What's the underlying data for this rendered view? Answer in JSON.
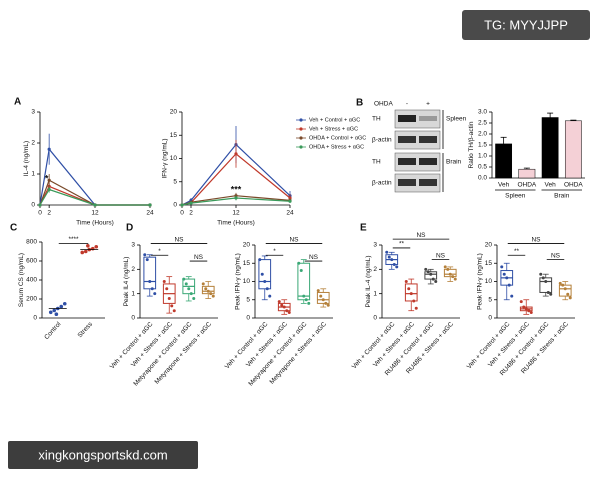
{
  "watermarks": {
    "top": "TG: MYYJJPP",
    "bottom": "xingkongsportskd.com"
  },
  "blot": {
    "panel": "B",
    "treatment": "OHDA",
    "lanes": [
      "-",
      "+"
    ],
    "rows": [
      "TH",
      "β-actin",
      "TH",
      "β-actin"
    ],
    "tissues": [
      "Spleen",
      "Brain"
    ]
  },
  "chart_data": [
    {
      "type": "line",
      "panel": "A",
      "ylabel": "IL-4 (ng/mL)",
      "xlabel": "Time (Hours)",
      "x": [
        0,
        2,
        12,
        24
      ],
      "xlim": [
        0,
        24
      ],
      "xticks": [
        0,
        2,
        12,
        24
      ],
      "ylim": [
        0,
        3
      ],
      "yticks": [
        0,
        1,
        2,
        3
      ],
      "series": [
        {
          "name": "Veh + Control + αGC",
          "color": "#2f4fa6",
          "values": [
            0,
            1.8,
            0,
            0
          ],
          "errors": [
            0,
            0.5,
            0,
            0
          ]
        },
        {
          "name": "Veh + Stress + αGC",
          "color": "#c0392b",
          "values": [
            0,
            0.6,
            0,
            0
          ],
          "errors": [
            0,
            0.15,
            0,
            0
          ]
        },
        {
          "name": "OHDA + Control + αGC",
          "color": "#7a4a2a",
          "values": [
            0,
            0.8,
            0,
            0
          ],
          "errors": [
            0,
            0.2,
            0,
            0
          ]
        },
        {
          "name": "OHDA + Stress + αGC",
          "color": "#3a9a5a",
          "values": [
            0,
            0.5,
            0,
            0
          ],
          "errors": [
            0,
            0.1,
            0,
            0
          ]
        }
      ],
      "annotations": [
        "*"
      ]
    },
    {
      "type": "line",
      "ylabel": "IFN-γ (ng/mL)",
      "xlabel": "Time (Hours)",
      "x": [
        0,
        2,
        12,
        24
      ],
      "xlim": [
        0,
        24
      ],
      "xticks": [
        0,
        2,
        12,
        24
      ],
      "ylim": [
        0,
        20
      ],
      "yticks": [
        0,
        5,
        10,
        15,
        20
      ],
      "legend": "right",
      "series": [
        {
          "name": "Veh + Control + αGC",
          "color": "#2f4fa6",
          "values": [
            0,
            1,
            13,
            2
          ],
          "errors": [
            0,
            0.5,
            4,
            1
          ]
        },
        {
          "name": "Veh + Stress + αGC",
          "color": "#c0392b",
          "values": [
            0,
            0.5,
            11,
            1.5
          ],
          "errors": [
            0,
            0.3,
            3,
            0.8
          ]
        },
        {
          "name": "OHDA + Control + αGC",
          "color": "#7a4a2a",
          "values": [
            0,
            0.6,
            2,
            1
          ],
          "errors": [
            0,
            0.2,
            0.6,
            0.3
          ]
        },
        {
          "name": "OHDA + Stress + αGC",
          "color": "#3a9a5a",
          "values": [
            0,
            0.4,
            1.5,
            0.8
          ],
          "errors": [
            0,
            0.2,
            0.5,
            0.3
          ]
        }
      ],
      "annotations": [
        "***"
      ]
    },
    {
      "type": "bar",
      "ylabel": "Ratio TH/β-actin",
      "categories": [
        "Veh",
        "OHDA",
        "Veh",
        "OHDA"
      ],
      "groups": [
        "Spleen",
        "Brain"
      ],
      "values": [
        1.55,
        0.4,
        2.75,
        2.6
      ],
      "errors": [
        0.3,
        0.05,
        0.2,
        0.03
      ],
      "colors": [
        "#000000",
        "#f4d0d6",
        "#000000",
        "#f4d0d6"
      ],
      "ylim": [
        0,
        3
      ],
      "yticks": [
        {
          "value": 0,
          "label": "0.0"
        },
        0.5,
        {
          "value": 1,
          "label": "1.0"
        },
        1.5,
        {
          "value": 2,
          "label": "2.0"
        },
        2.5,
        {
          "value": 3,
          "label": "3.0"
        }
      ]
    },
    {
      "type": "strip",
      "panel": "C",
      "ylabel": "Serum CS (ng/mL)",
      "categories": [
        "Control",
        "Stress"
      ],
      "points": [
        [
          60,
          80,
          100,
          120,
          150,
          40
        ],
        [
          690,
          700,
          720,
          730,
          750,
          760
        ]
      ],
      "means": [
        100,
        720
      ],
      "colors": [
        "#2f4fa6",
        "#c0392b"
      ],
      "ylim": [
        0,
        800
      ],
      "yticks": [
        0,
        200,
        400,
        600,
        800
      ],
      "annotations": [
        "****"
      ]
    },
    {
      "type": "box",
      "panel": "D",
      "ylabel": "Peak IL4 (ng/mL)",
      "categories": [
        "Veh + Control + αGC",
        "Veh + Stress + αGC",
        "Metyrapone + Control + αGC",
        "Metyrapone + Stress + αGC"
      ],
      "colors": [
        "#2f4fa6",
        "#c0392b",
        "#3aa876",
        "#b5803a"
      ],
      "ylim": [
        0,
        3
      ],
      "yticks": [
        0,
        1,
        2,
        3
      ],
      "boxes": [
        {
          "min": 0.9,
          "q1": 1.2,
          "median": 1.5,
          "q3": 2.5,
          "max": 2.6,
          "points": [
            2.6,
            2.4,
            1.5,
            1.2,
            1.0
          ]
        },
        {
          "min": 0.2,
          "q1": 0.6,
          "median": 1.0,
          "q3": 1.4,
          "max": 1.7,
          "points": [
            1.5,
            1.2,
            0.8,
            0.5,
            0.3
          ]
        },
        {
          "min": 0.7,
          "q1": 1.0,
          "median": 1.3,
          "q3": 1.6,
          "max": 1.7,
          "points": [
            1.6,
            1.4,
            1.2,
            1.0,
            0.8
          ]
        },
        {
          "min": 0.8,
          "q1": 1.0,
          "median": 1.1,
          "q3": 1.3,
          "max": 1.5,
          "points": [
            1.4,
            1.2,
            1.1,
            1.0,
            0.9
          ]
        }
      ],
      "annotations": [
        "*",
        "NS",
        "NS"
      ]
    },
    {
      "type": "box",
      "ylabel": "Peak IFN-γ (ng/mL)",
      "categories": [
        "Veh + Control + αGC",
        "Veh + Stress + αGC",
        "Metyrapone + Control + αGC",
        "Metyrapone + Stress + αGC"
      ],
      "colors": [
        "#2f4fa6",
        "#c0392b",
        "#3aa876",
        "#b5803a"
      ],
      "ylim": [
        0,
        20
      ],
      "yticks": [
        0,
        5,
        10,
        15,
        20
      ],
      "boxes": [
        {
          "min": 5,
          "q1": 8,
          "median": 10,
          "q3": 16,
          "max": 17,
          "points": [
            16,
            12,
            10,
            8,
            6
          ]
        },
        {
          "min": 1,
          "q1": 2,
          "median": 3,
          "q3": 4,
          "max": 5,
          "points": [
            4.5,
            3.5,
            3,
            2,
            1.5
          ]
        },
        {
          "min": 4,
          "q1": 5,
          "median": 6,
          "q3": 15,
          "max": 16,
          "points": [
            15,
            13,
            6,
            5,
            4
          ]
        },
        {
          "min": 3,
          "q1": 4,
          "median": 5,
          "q3": 7,
          "max": 8,
          "points": [
            7.5,
            6,
            5,
            4,
            3.5
          ]
        }
      ],
      "annotations": [
        "*",
        "NS",
        "NS"
      ]
    },
    {
      "type": "box",
      "panel": "E",
      "ylabel": "Peak IL-4 (ng/mL)",
      "categories": [
        "Veh + Control + αGC",
        "Veh + Stress + αGC",
        "RU486 + Control + αGC",
        "RU486 + Stress + αGC"
      ],
      "colors": [
        "#2f4fa6",
        "#c0392b",
        "#444444",
        "#b5803a"
      ],
      "ylim": [
        0,
        3
      ],
      "yticks": [
        0,
        1,
        2,
        3
      ],
      "boxes": [
        {
          "min": 2.0,
          "q1": 2.2,
          "median": 2.4,
          "q3": 2.6,
          "max": 2.7,
          "points": [
            2.7,
            2.5,
            2.4,
            2.2,
            2.1
          ]
        },
        {
          "min": 0.3,
          "q1": 0.7,
          "median": 1.0,
          "q3": 1.4,
          "max": 1.6,
          "points": [
            1.5,
            1.2,
            1.0,
            0.7,
            0.4
          ]
        },
        {
          "min": 1.4,
          "q1": 1.6,
          "median": 1.8,
          "q3": 1.9,
          "max": 2.0,
          "points": [
            2.0,
            1.9,
            1.8,
            1.6,
            1.5
          ]
        },
        {
          "min": 1.5,
          "q1": 1.7,
          "median": 1.8,
          "q3": 2.0,
          "max": 2.1,
          "points": [
            2.1,
            2.0,
            1.8,
            1.7,
            1.6
          ]
        }
      ],
      "annotations": [
        "**",
        "NS",
        "NS"
      ]
    },
    {
      "type": "box",
      "ylabel": "Peak IFN-γ (ng/mL)",
      "categories": [
        "Veh + Control + αGC",
        "Veh + Stress + αGC",
        "RU486 + Control + αGC",
        "RU486 + Stress + αGC"
      ],
      "colors": [
        "#2f4fa6",
        "#c0392b",
        "#444444",
        "#b5803a"
      ],
      "ylim": [
        0,
        20
      ],
      "yticks": [
        0,
        5,
        10,
        15,
        20
      ],
      "boxes": [
        {
          "min": 5,
          "q1": 9,
          "median": 11,
          "q3": 13,
          "max": 15,
          "points": [
            14,
            12,
            11,
            9,
            6
          ]
        },
        {
          "min": 1,
          "q1": 2,
          "median": 2.5,
          "q3": 3,
          "max": 5,
          "points": [
            4.5,
            3,
            2.5,
            2,
            1.5
          ]
        },
        {
          "min": 6,
          "q1": 7,
          "median": 10,
          "q3": 11,
          "max": 12,
          "points": [
            12,
            11,
            10,
            7,
            6.5
          ]
        },
        {
          "min": 5,
          "q1": 6,
          "median": 8,
          "q3": 9,
          "max": 10,
          "points": [
            9.5,
            9,
            8,
            6.5,
            5.5
          ]
        }
      ],
      "annotations": [
        "**",
        "NS",
        "NS"
      ]
    }
  ]
}
